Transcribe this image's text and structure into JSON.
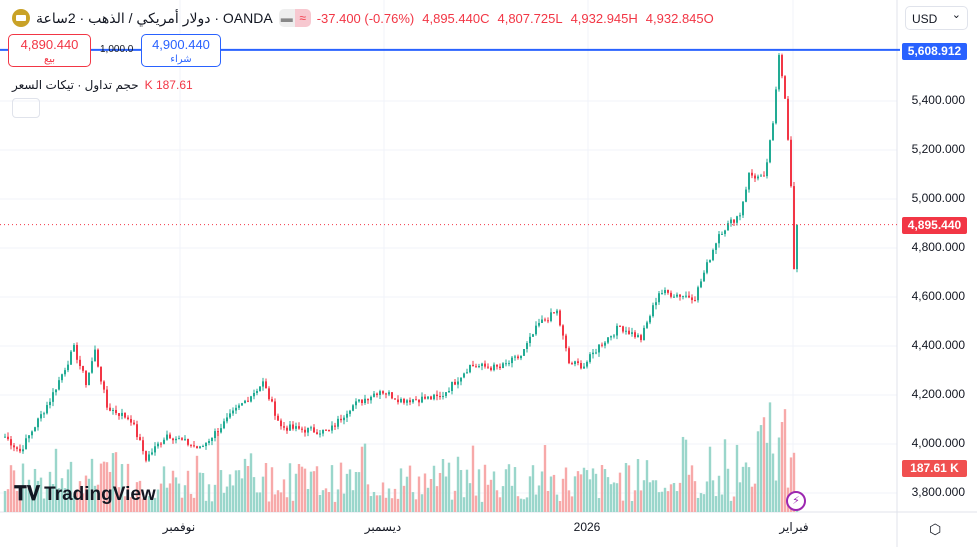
{
  "header": {
    "symbol": "دولار أمريكي / الذهب · 2ساعة · OANDA",
    "change": "-37.400 (-0.76%)",
    "close": "4,895.440C",
    "low": "4,807.725L",
    "high": "4,932.945H",
    "open": "4,932.845O",
    "mode_icon": "minus-icon",
    "approx_icon": "≈"
  },
  "trade": {
    "sell_price": "4,890.440",
    "sell_label": "بيع",
    "buy_price": "4,900.440",
    "buy_label": "شراء",
    "quantity": "1,000.0"
  },
  "volume": {
    "label": "حجم تداول · تيكات السعر",
    "value": "K 187.61"
  },
  "currency": "USD",
  "colors": {
    "up": "#22ab94",
    "down": "#f23645",
    "accent": "#2962ff"
  },
  "chart_data": {
    "type": "candlestick",
    "yticks": [
      "5,400.000",
      "5,200.000",
      "5,000.000",
      "4,800.000",
      "4,600.000",
      "4,400.000",
      "4,200.000",
      "4,000.000",
      "3,800.000"
    ],
    "ytick_values": [
      5400,
      5200,
      5000,
      4800,
      4600,
      4400,
      4200,
      4000,
      3800
    ],
    "ylim": [
      3730,
      5800
    ],
    "xticks": [
      {
        "label": "نوفمبر",
        "bar": 58
      },
      {
        "label": "ديسمبر",
        "bar": 126
      },
      {
        "label": "2026",
        "bar": 194
      },
      {
        "label": "فبراير",
        "bar": 263
      }
    ],
    "hline": {
      "label": "5,608.912",
      "value": 5608.912
    },
    "last_price": {
      "label": "4,895.440",
      "value": 4895.44
    },
    "last_volume": "187.61 K",
    "path": [
      [
        0,
        4030
      ],
      [
        5,
        3970
      ],
      [
        15,
        4180
      ],
      [
        23,
        4390
      ],
      [
        27,
        4250
      ],
      [
        30,
        4380
      ],
      [
        34,
        4150
      ],
      [
        42,
        4100
      ],
      [
        47,
        3940
      ],
      [
        54,
        4040
      ],
      [
        65,
        3980
      ],
      [
        78,
        4150
      ],
      [
        86,
        4250
      ],
      [
        92,
        4070
      ],
      [
        98,
        4060
      ],
      [
        108,
        4050
      ],
      [
        115,
        4150
      ],
      [
        125,
        4220
      ],
      [
        132,
        4180
      ],
      [
        145,
        4190
      ],
      [
        155,
        4320
      ],
      [
        165,
        4310
      ],
      [
        172,
        4360
      ],
      [
        178,
        4490
      ],
      [
        184,
        4540
      ],
      [
        188,
        4330
      ],
      [
        193,
        4320
      ],
      [
        198,
        4400
      ],
      [
        205,
        4480
      ],
      [
        212,
        4430
      ],
      [
        218,
        4620
      ],
      [
        230,
        4600
      ],
      [
        238,
        4860
      ],
      [
        245,
        4940
      ],
      [
        248,
        5100
      ],
      [
        253,
        5080
      ],
      [
        256,
        5300
      ],
      [
        258,
        5600
      ],
      [
        260,
        5420
      ],
      [
        262,
        5050
      ],
      [
        263,
        4700
      ],
      [
        264,
        4895
      ]
    ]
  },
  "branding": {
    "logo": "TradingView"
  },
  "axis_labels": {
    "x": [
      "نوفمبر",
      "ديسمبر",
      "2026",
      "فبراير"
    ]
  }
}
